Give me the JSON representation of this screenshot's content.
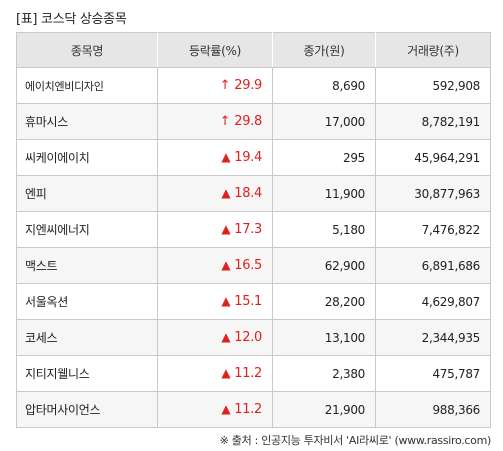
{
  "title": "[표] 코스닥 상승종목",
  "headers": [
    "종목명",
    "등락률(%)",
    "종가(원)",
    "거래량(주)"
  ],
  "rows": [
    {
      "name": "에이치엔비디자인",
      "marker": "↑",
      "rate": "29.9",
      "close": "8,690",
      "volume": "592,908"
    },
    {
      "name": "휴마시스",
      "marker": "↑",
      "rate": "29.8",
      "close": "17,000",
      "volume": "8,782,191"
    },
    {
      "name": "씨케이에이치",
      "marker": "▲",
      "rate": "19.4",
      "close": "295",
      "volume": "45,964,291"
    },
    {
      "name": "엔피",
      "marker": "▲",
      "rate": "18.4",
      "close": "11,900",
      "volume": "30,877,963"
    },
    {
      "name": "지엔씨에너지",
      "marker": "▲",
      "rate": "17.3",
      "close": "5,180",
      "volume": "7,476,822"
    },
    {
      "name": "맥스트",
      "marker": "▲",
      "rate": "16.5",
      "close": "62,900",
      "volume": "6,891,686"
    },
    {
      "name": "서울옥션",
      "marker": "▲",
      "rate": "15.1",
      "close": "28,200",
      "volume": "4,629,807"
    },
    {
      "name": "코세스",
      "marker": "▲",
      "rate": "12.0",
      "close": "13,100",
      "volume": "2,344,935"
    },
    {
      "name": "지티지웰니스",
      "marker": "▲",
      "rate": "11.2",
      "close": "2,380",
      "volume": "475,787"
    },
    {
      "name": "압타머사이언스",
      "marker": "▲",
      "rate": "11.2",
      "close": "21,900",
      "volume": "988,366"
    }
  ],
  "source": "※ 출처 : 인공지능 투자비서 'AI라씨로' (www.rassiro.com)",
  "colors": {
    "rise": "#e0201e",
    "header_bg": "#e6e6e6",
    "stripe_bg": "#f6f6f6",
    "border": "#c9c9c9"
  }
}
